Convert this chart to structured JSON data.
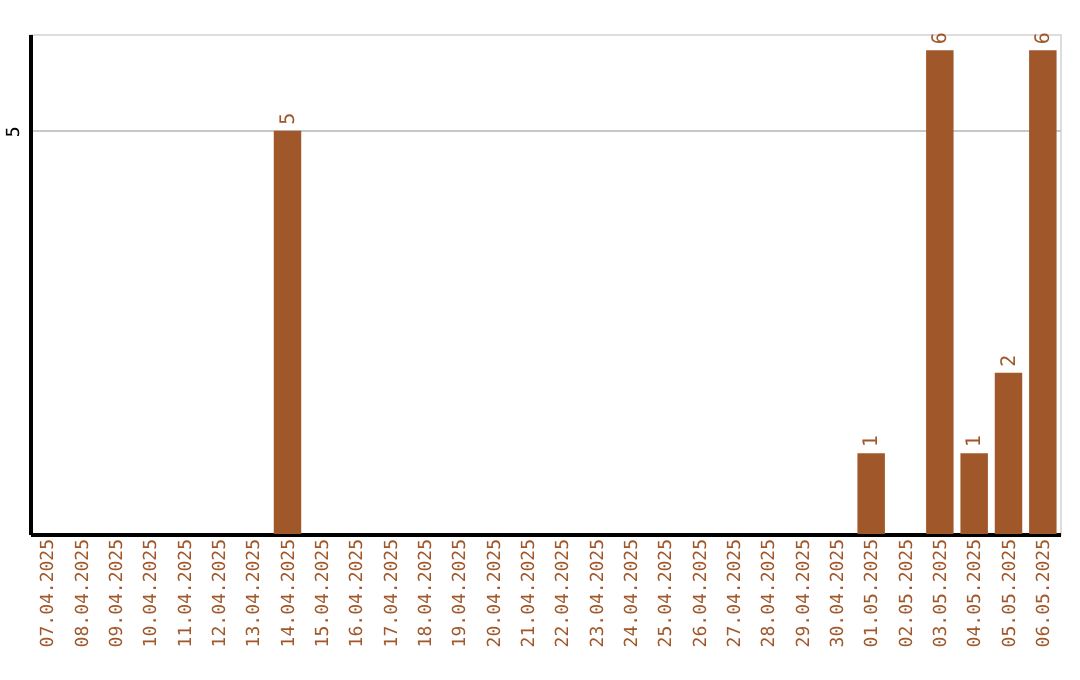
{
  "chart_data": {
    "type": "bar",
    "categories": [
      "07.04.2025",
      "08.04.2025",
      "09.04.2025",
      "10.04.2025",
      "11.04.2025",
      "12.04.2025",
      "13.04.2025",
      "14.04.2025",
      "15.04.2025",
      "16.04.2025",
      "17.04.2025",
      "18.04.2025",
      "19.04.2025",
      "20.04.2025",
      "21.04.2025",
      "22.04.2025",
      "23.04.2025",
      "24.04.2025",
      "25.04.2025",
      "26.04.2025",
      "27.04.2025",
      "28.04.2025",
      "29.04.2025",
      "30.04.2025",
      "01.05.2025",
      "02.05.2025",
      "03.05.2025",
      "04.05.2025",
      "05.05.2025",
      "06.05.2025"
    ],
    "values": [
      0,
      0,
      0,
      0,
      0,
      0,
      0,
      5,
      0,
      0,
      0,
      0,
      0,
      0,
      0,
      0,
      0,
      0,
      0,
      0,
      0,
      0,
      0,
      0,
      1,
      0,
      6,
      1,
      2,
      6
    ],
    "value_labels": [
      null,
      null,
      null,
      null,
      null,
      null,
      null,
      "5",
      null,
      null,
      null,
      null,
      null,
      null,
      null,
      null,
      null,
      null,
      null,
      null,
      null,
      null,
      null,
      null,
      "1",
      null,
      "6",
      "1",
      "2",
      "6"
    ],
    "color": "#a0572a",
    "ylim": [
      0,
      6.2
    ],
    "yticks": [
      5
    ],
    "grid": "y"
  }
}
